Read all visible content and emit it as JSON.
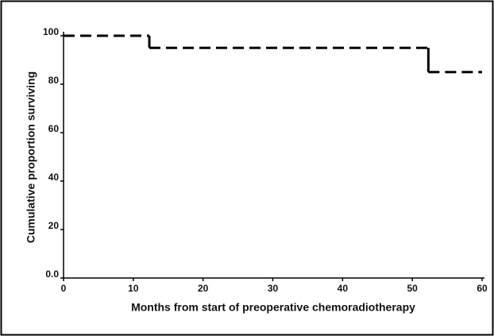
{
  "chart_data": {
    "type": "line",
    "step": "post",
    "xlabel": "Months from start of preoperative chemoradiotherapy",
    "ylabel": "Cumulative proportion surviving",
    "x": [
      0,
      12.3,
      52.3,
      60
    ],
    "series": [
      {
        "color": "#000000",
        "values": [
          100,
          95,
          85,
          85
        ]
      }
    ],
    "xlim": [
      0,
      60
    ],
    "xticks": [
      0,
      10,
      20,
      30,
      40,
      50,
      60
    ],
    "ylim": [
      0,
      100
    ],
    "yticks": [
      {
        "value": 0,
        "label": "0.0"
      },
      20,
      40,
      60,
      80,
      100
    ],
    "grid": false
  }
}
